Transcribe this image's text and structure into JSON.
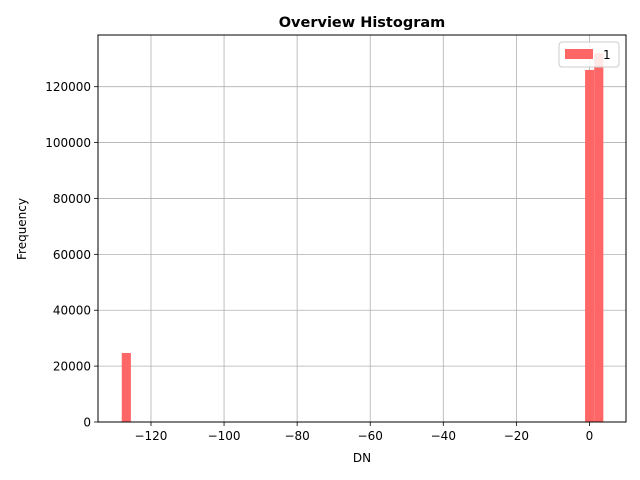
{
  "chart_data": {
    "type": "bar",
    "title": "Overview Histogram",
    "xlabel": "DN",
    "ylabel": "Frequency",
    "xlim": [
      -134.5,
      10
    ],
    "ylim": [
      0,
      138500
    ],
    "xticks": [
      -120,
      -100,
      -80,
      -60,
      -40,
      -20,
      0
    ],
    "xtick_labels": [
      "−120",
      "−100",
      "−80",
      "−60",
      "−40",
      "−20",
      "0"
    ],
    "yticks": [
      0,
      20000,
      40000,
      60000,
      80000,
      100000,
      120000
    ],
    "ytick_labels": [
      "0",
      "20000",
      "40000",
      "60000",
      "80000",
      "100000",
      "120000"
    ],
    "grid": true,
    "legend": {
      "position": "top-right"
    },
    "series": [
      {
        "name": "1",
        "color": "#ff6666",
        "bins": [
          {
            "x0": -128,
            "x1": -125.5,
            "count": 24700
          },
          {
            "x0": -1.2,
            "x1": 1.3,
            "count": 126000
          },
          {
            "x0": 1.3,
            "x1": 3.8,
            "count": 132000
          }
        ]
      }
    ]
  }
}
